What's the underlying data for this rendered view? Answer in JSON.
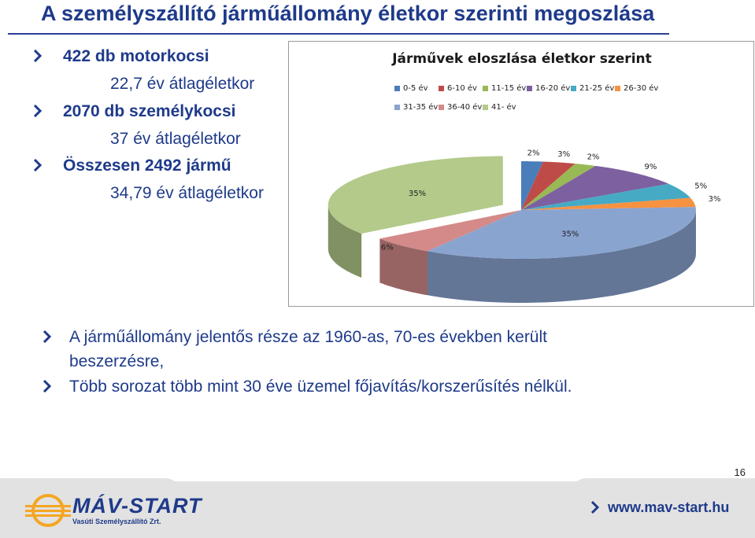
{
  "slide": {
    "title": "A személyszállító járműállomány életkor szerinti megoszlása",
    "page_number": "16"
  },
  "bullets": [
    {
      "text": "422 db motorkocsi",
      "sub": "22,7 év átlagéletkor"
    },
    {
      "text": "2070 db személykocsi",
      "sub": "37 év átlagéletkor"
    },
    {
      "text": "Összesen 2492 jármű",
      "sub": "34,79 év átlagéletkor"
    }
  ],
  "paragraphs": [
    {
      "line1": "A járműállomány jelentős része az 1960-as, 70-es években került",
      "line2": "beszerzésre,"
    },
    {
      "line1": "Több sorozat több mint 30 éve üzemel főjavítás/korszerűsítés nélkül.",
      "line2": ""
    }
  ],
  "footer": {
    "logo_name": "MÁV-START",
    "logo_subtitle": "Vasúti Személyszállító Zrt.",
    "website": "www.mav-start.hu"
  },
  "colors": {
    "title": "#1e3a8a",
    "chevron": "#1e3a8a",
    "logo_orange": "#f5a623"
  },
  "chart_data": {
    "type": "pie",
    "title": "Járművek eloszlása életkor szerint",
    "categories": [
      "0-5 év",
      "6-10 év",
      "11-15 év",
      "16-20 év",
      "21-25 év",
      "26-30 év",
      "31-35 év",
      "36-40 év",
      "41-  év"
    ],
    "values": [
      2,
      3,
      2,
      9,
      5,
      3,
      35,
      6,
      35
    ],
    "labels": [
      "2%",
      "3%",
      "2%",
      "9%",
      "5%",
      "3%",
      "35%",
      "6%",
      "35%"
    ],
    "colors": [
      "#4a7ebb",
      "#be4b48",
      "#98b954",
      "#7d60a0",
      "#46aac5",
      "#f69240",
      "#8aa4d0",
      "#d38a89",
      "#b3ca8a"
    ],
    "legend_position": "top",
    "style": "3d exploded"
  }
}
